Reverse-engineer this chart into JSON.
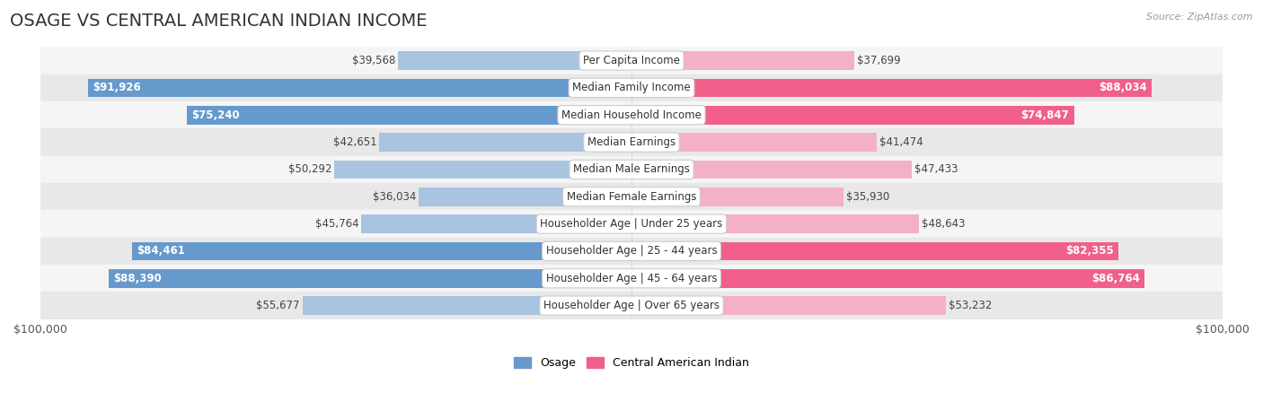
{
  "title": "OSAGE VS CENTRAL AMERICAN INDIAN INCOME",
  "source": "Source: ZipAtlas.com",
  "categories": [
    "Per Capita Income",
    "Median Family Income",
    "Median Household Income",
    "Median Earnings",
    "Median Male Earnings",
    "Median Female Earnings",
    "Householder Age | Under 25 years",
    "Householder Age | 25 - 44 years",
    "Householder Age | 45 - 64 years",
    "Householder Age | Over 65 years"
  ],
  "osage_values": [
    39568,
    91926,
    75240,
    42651,
    50292,
    36034,
    45764,
    84461,
    88390,
    55677
  ],
  "central_values": [
    37699,
    88034,
    74847,
    41474,
    47433,
    35930,
    48643,
    82355,
    86764,
    53232
  ],
  "max_value": 100000,
  "osage_color_light": "#a8c4e0",
  "osage_color_dark": "#6699cc",
  "central_color_light": "#f4b0c8",
  "central_color_dark": "#f0608a",
  "row_bg_even": "#f5f5f5",
  "row_bg_odd": "#e8e8e8",
  "title_fontsize": 14,
  "label_fontsize": 8.5,
  "value_fontsize": 8.5,
  "legend_fontsize": 9,
  "threshold_solid": 60000
}
